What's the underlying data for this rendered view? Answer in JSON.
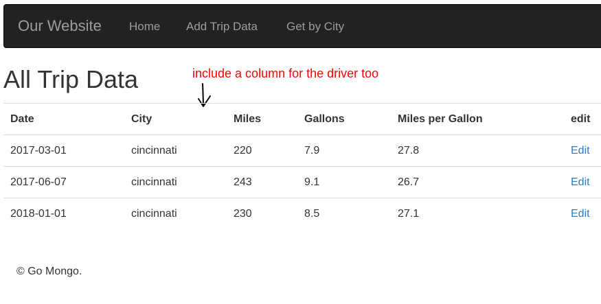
{
  "navbar": {
    "brand": "Our Website",
    "links": [
      {
        "label": "Home"
      },
      {
        "label": "Add Trip Data"
      },
      {
        "label": "Get by City"
      }
    ],
    "background": "#222222",
    "link_color": "#9d9d9d"
  },
  "page": {
    "title": "All Trip Data"
  },
  "annotation": {
    "text": "include a column for the driver too",
    "color": "#ff0000"
  },
  "table": {
    "headers": [
      "Date",
      "City",
      "Miles",
      "Gallons",
      "Miles per Gallon",
      "edit"
    ],
    "rows": [
      {
        "date": "2017-03-01",
        "city": "cincinnati",
        "miles": "220",
        "gallons": "7.9",
        "mpg": "27.8",
        "edit": "Edit"
      },
      {
        "date": "2017-06-07",
        "city": "cincinnati",
        "miles": "243",
        "gallons": "9.1",
        "mpg": "26.7",
        "edit": "Edit"
      },
      {
        "date": "2018-01-01",
        "city": "cincinnati",
        "miles": "230",
        "gallons": "8.5",
        "mpg": "27.1",
        "edit": "Edit"
      }
    ],
    "link_color": "#337ab7"
  },
  "footer": {
    "text": "© Go Mongo."
  }
}
